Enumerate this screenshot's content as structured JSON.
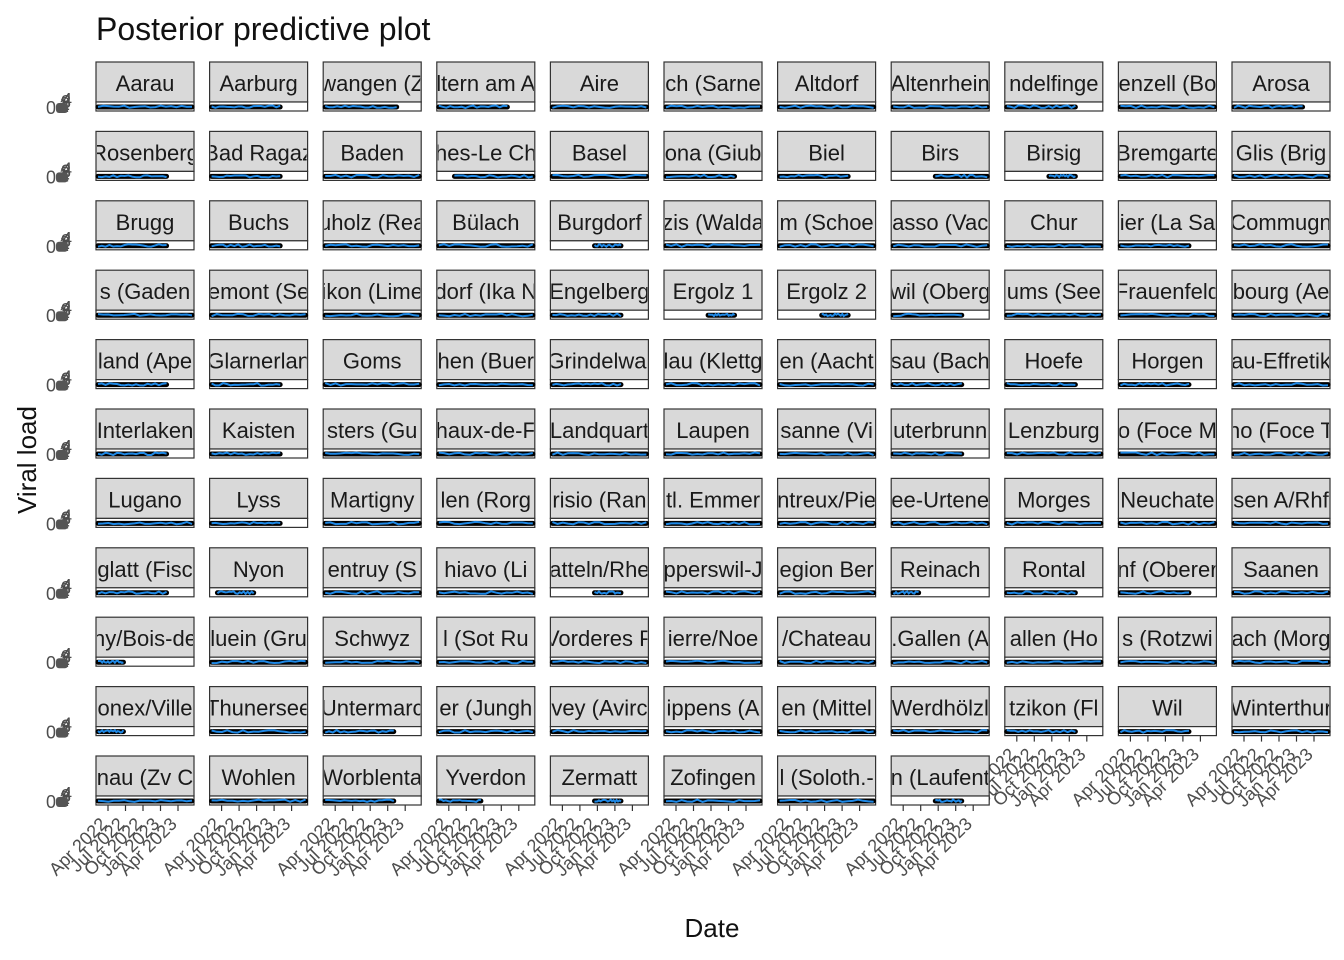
{
  "chart_data": {
    "type": "line",
    "title": "Posterior predictive plot",
    "xlabel": "Date",
    "ylabel": "Viral load",
    "x_ticks": [
      "Apr 2022",
      "Jul 2022",
      "Oct 2022",
      "Jan 2023",
      "Apr 2023"
    ],
    "y_ticks": [
      "0",
      "1",
      "2",
      "3",
      "4"
    ],
    "facet_rows": 11,
    "facet_cols": 11,
    "colors": {
      "observed": "#000000",
      "predicted": "#1e88e5",
      "strip_fill": "#d9d9d9",
      "strip_border": "#333333",
      "panel_border": "#333333"
    },
    "panels": [
      {
        "label": "Aarau",
        "start": 0.02,
        "end": 0.98
      },
      {
        "label": "Aarburg",
        "start": 0.02,
        "end": 0.72
      },
      {
        "label": "wangen (Z",
        "start": 0.02,
        "end": 0.75
      },
      {
        "label": "ltern am A",
        "start": 0.02,
        "end": 0.72
      },
      {
        "label": "Aire",
        "start": 0.02,
        "end": 0.98
      },
      {
        "label": "ch (Sarne",
        "start": 0.02,
        "end": 0.98
      },
      {
        "label": "Altdorf",
        "start": 0.02,
        "end": 0.98
      },
      {
        "label": "Altenrhein",
        "start": 0.02,
        "end": 0.98
      },
      {
        "label": "ndelfinge",
        "start": 0.02,
        "end": 0.72
      },
      {
        "label": "enzell (Bo",
        "start": 0.02,
        "end": 0.98
      },
      {
        "label": "Arosa",
        "start": 0.02,
        "end": 0.72
      },
      {
        "label": "Rosenberg",
        "start": 0.02,
        "end": 0.72
      },
      {
        "label": "Bad Ragaz",
        "start": 0.02,
        "end": 0.72
      },
      {
        "label": "Baden",
        "start": 0.02,
        "end": 0.98
      },
      {
        "label": "hes-Le Ch",
        "start": 0.18,
        "end": 0.98
      },
      {
        "label": "Basel",
        "start": 0.02,
        "end": 0.98
      },
      {
        "label": "ona (Giub",
        "start": 0.02,
        "end": 0.72
      },
      {
        "label": "Biel",
        "start": 0.02,
        "end": 0.72
      },
      {
        "label": "Birs",
        "start": 0.45,
        "end": 0.98
      },
      {
        "label": "Birsig",
        "start": 0.45,
        "end": 0.72
      },
      {
        "label": "Bremgarte",
        "start": 0.02,
        "end": 0.98
      },
      {
        "label": "Glis (Brig",
        "start": 0.02,
        "end": 0.98
      },
      {
        "label": "Brugg",
        "start": 0.02,
        "end": 0.72
      },
      {
        "label": "Buchs",
        "start": 0.02,
        "end": 0.72
      },
      {
        "label": "uholz (Rea",
        "start": 0.02,
        "end": 0.98
      },
      {
        "label": "Bülach",
        "start": 0.02,
        "end": 0.98
      },
      {
        "label": "Burgdorf",
        "start": 0.45,
        "end": 0.72
      },
      {
        "label": "zis (Walda",
        "start": 0.02,
        "end": 0.98
      },
      {
        "label": "m (Schoe",
        "start": 0.02,
        "end": 0.98
      },
      {
        "label": "asso (Vac",
        "start": 0.02,
        "end": 0.98
      },
      {
        "label": "Chur",
        "start": 0.02,
        "end": 0.98
      },
      {
        "label": "ier (La Sa",
        "start": 0.02,
        "end": 0.72
      },
      {
        "label": "Commugn",
        "start": 0.02,
        "end": 0.98
      },
      {
        "label": "s (Gaden",
        "start": 0.02,
        "end": 0.98
      },
      {
        "label": "emont (Se",
        "start": 0.02,
        "end": 0.98
      },
      {
        "label": "ikon (Lime",
        "start": 0.02,
        "end": 0.98
      },
      {
        "label": "dorf (Ika N",
        "start": 0.02,
        "end": 0.98
      },
      {
        "label": "Engelberg",
        "start": 0.02,
        "end": 0.72
      },
      {
        "label": "Ergolz 1",
        "start": 0.45,
        "end": 0.72
      },
      {
        "label": "Ergolz 2",
        "start": 0.45,
        "end": 0.72
      },
      {
        "label": "wil (Oberg",
        "start": 0.02,
        "end": 0.72
      },
      {
        "label": "ums (See",
        "start": 0.02,
        "end": 0.98
      },
      {
        "label": "Frauenfeld",
        "start": 0.02,
        "end": 0.98
      },
      {
        "label": "bourg (Ae",
        "start": 0.02,
        "end": 0.98
      },
      {
        "label": "land (Ape",
        "start": 0.02,
        "end": 0.72
      },
      {
        "label": "Glarnerlan",
        "start": 0.02,
        "end": 0.72
      },
      {
        "label": "Goms",
        "start": 0.02,
        "end": 0.98
      },
      {
        "label": "hen (Buer",
        "start": 0.02,
        "end": 0.98
      },
      {
        "label": "Grindelwal",
        "start": 0.02,
        "end": 0.72
      },
      {
        "label": "lau (Klettg",
        "start": 0.02,
        "end": 0.98
      },
      {
        "label": "en (Aacht",
        "start": 0.02,
        "end": 0.98
      },
      {
        "label": "sau (Bach",
        "start": 0.02,
        "end": 0.72
      },
      {
        "label": "Hoefe",
        "start": 0.02,
        "end": 0.72
      },
      {
        "label": "Horgen",
        "start": 0.02,
        "end": 0.72
      },
      {
        "label": "au-Effretik",
        "start": 0.02,
        "end": 0.98
      },
      {
        "label": "Interlaken",
        "start": 0.02,
        "end": 0.72
      },
      {
        "label": "Kaisten",
        "start": 0.02,
        "end": 0.72
      },
      {
        "label": "sters (Gu",
        "start": 0.02,
        "end": 0.98
      },
      {
        "label": "haux-de-F",
        "start": 0.02,
        "end": 0.98
      },
      {
        "label": "Landquart",
        "start": 0.02,
        "end": 0.98
      },
      {
        "label": "Laupen",
        "start": 0.02,
        "end": 0.98
      },
      {
        "label": "sanne (Vi",
        "start": 0.02,
        "end": 0.98
      },
      {
        "label": "uterbrunn",
        "start": 0.02,
        "end": 0.72
      },
      {
        "label": "Lenzburg",
        "start": 0.02,
        "end": 0.98
      },
      {
        "label": "o (Foce M",
        "start": 0.02,
        "end": 0.98
      },
      {
        "label": "no (Foce T",
        "start": 0.02,
        "end": 0.98
      },
      {
        "label": "Lugano",
        "start": 0.02,
        "end": 0.98
      },
      {
        "label": "Lyss",
        "start": 0.02,
        "end": 0.72
      },
      {
        "label": "Martigny",
        "start": 0.02,
        "end": 0.98
      },
      {
        "label": "len (Rorg",
        "start": 0.02,
        "end": 0.98
      },
      {
        "label": "risio (Ran",
        "start": 0.02,
        "end": 0.98
      },
      {
        "label": "tl. Emmer",
        "start": 0.02,
        "end": 0.98
      },
      {
        "label": "ntreux/Pie",
        "start": 0.02,
        "end": 0.98
      },
      {
        "label": "ee-Urtene",
        "start": 0.02,
        "end": 0.98
      },
      {
        "label": "Morges",
        "start": 0.02,
        "end": 0.98
      },
      {
        "label": "Neuchate",
        "start": 0.02,
        "end": 0.98
      },
      {
        "label": "sen A/Rhf",
        "start": 0.02,
        "end": 0.98
      },
      {
        "label": "glatt (Fisc",
        "start": 0.02,
        "end": 0.72
      },
      {
        "label": "Nyon",
        "start": 0.08,
        "end": 0.45
      },
      {
        "label": "entruy (S",
        "start": 0.02,
        "end": 0.98
      },
      {
        "label": "hiavo (Li",
        "start": 0.02,
        "end": 0.98
      },
      {
        "label": "atteln/Rhe",
        "start": 0.45,
        "end": 0.72
      },
      {
        "label": "pperswil-J",
        "start": 0.02,
        "end": 0.98
      },
      {
        "label": "egion Ber",
        "start": 0.02,
        "end": 0.98
      },
      {
        "label": "Reinach",
        "start": 0.02,
        "end": 0.28
      },
      {
        "label": "Rontal",
        "start": 0.02,
        "end": 0.72
      },
      {
        "label": "nf (Oberer",
        "start": 0.02,
        "end": 0.72
      },
      {
        "label": "Saanen",
        "start": 0.02,
        "end": 0.98
      },
      {
        "label": "ny/Bois-de",
        "start": 0.02,
        "end": 0.28
      },
      {
        "label": "luein (Gru",
        "start": 0.02,
        "end": 0.98
      },
      {
        "label": "Schwyz",
        "start": 0.02,
        "end": 0.98
      },
      {
        "label": "l (Sot Ru",
        "start": 0.02,
        "end": 0.98
      },
      {
        "label": "Vorderes P",
        "start": 0.02,
        "end": 0.98
      },
      {
        "label": "ierre/Noe",
        "start": 0.02,
        "end": 0.98
      },
      {
        "label": "/Chateau",
        "start": 0.02,
        "end": 0.98
      },
      {
        "label": ".Gallen (A",
        "start": 0.02,
        "end": 0.98
      },
      {
        "label": "allen (Ho",
        "start": 0.02,
        "end": 0.98
      },
      {
        "label": "s (Rotzwi",
        "start": 0.02,
        "end": 0.98
      },
      {
        "label": "ach (Morg",
        "start": 0.02,
        "end": 0.98
      },
      {
        "label": "onex/Ville",
        "start": 0.02,
        "end": 0.28
      },
      {
        "label": "Thunersee",
        "start": 0.02,
        "end": 0.98
      },
      {
        "label": "Untermarc",
        "start": 0.02,
        "end": 0.72
      },
      {
        "label": "er (Jungh",
        "start": 0.02,
        "end": 0.98
      },
      {
        "label": "vey (Avirc",
        "start": 0.02,
        "end": 0.98
      },
      {
        "label": "ippens (A",
        "start": 0.02,
        "end": 0.98
      },
      {
        "label": "en (Mittel",
        "start": 0.02,
        "end": 0.98
      },
      {
        "label": "Werdhölzl",
        "start": 0.02,
        "end": 0.98
      },
      {
        "label": "tzikon (Fl",
        "start": 0.02,
        "end": 0.72
      },
      {
        "label": "Wil",
        "start": 0.02,
        "end": 0.72
      },
      {
        "label": "Winterthur",
        "start": 0.02,
        "end": 0.98
      },
      {
        "label": "nau (Zv C",
        "start": 0.02,
        "end": 0.98
      },
      {
        "label": "Wohlen",
        "start": 0.02,
        "end": 0.98
      },
      {
        "label": "Worblenta",
        "start": 0.02,
        "end": 0.72
      },
      {
        "label": "Yverdon",
        "start": 0.02,
        "end": 0.45
      },
      {
        "label": "Zermatt",
        "start": 0.45,
        "end": 0.72
      },
      {
        "label": "Zofingen",
        "start": 0.02,
        "end": 0.98
      },
      {
        "label": "l (Soloth.-",
        "start": 0.02,
        "end": 0.98
      },
      {
        "label": "n (Laufent",
        "start": 0.45,
        "end": 0.72
      }
    ]
  }
}
